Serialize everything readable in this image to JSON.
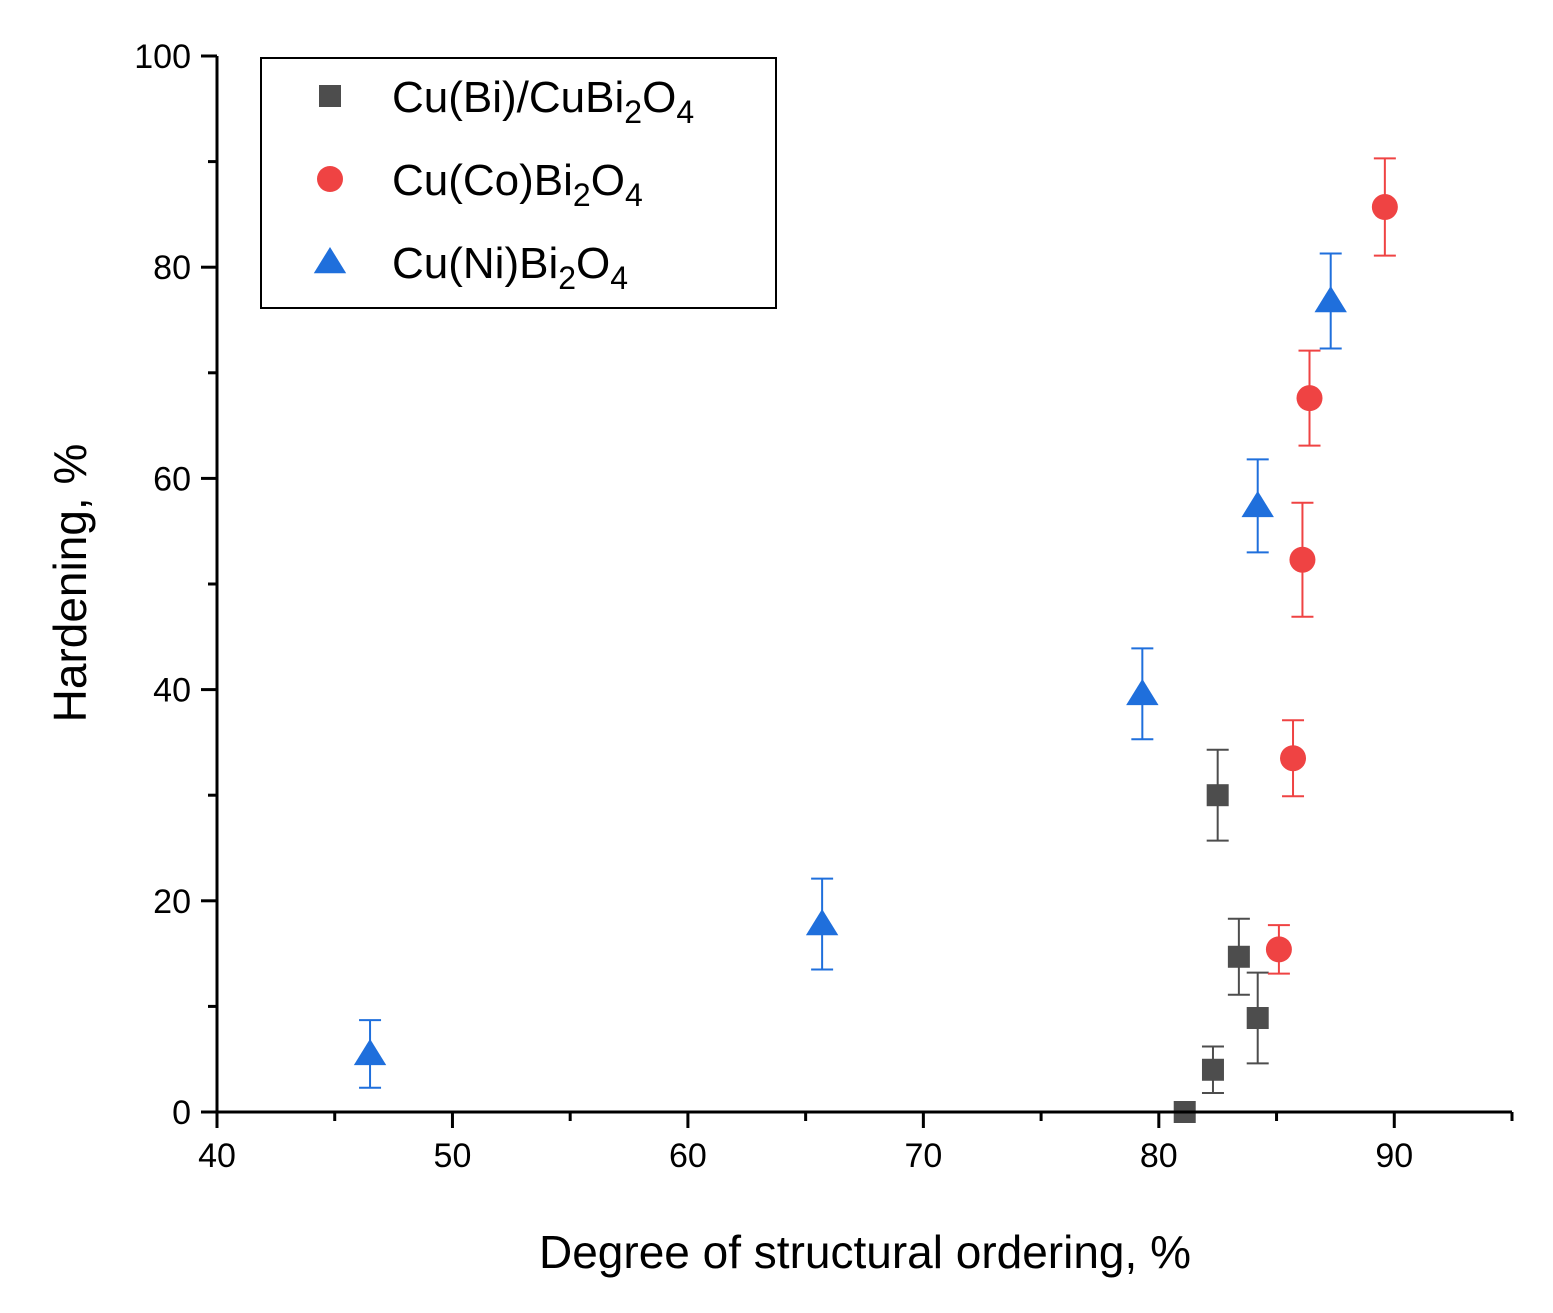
{
  "chart_data": {
    "type": "scatter",
    "title": "",
    "xlabel": "Degree of structural ordering, %",
    "ylabel": "Hardening, %",
    "xlim": [
      40,
      95
    ],
    "ylim": [
      0,
      100
    ],
    "x_major_ticks": [
      40,
      50,
      60,
      70,
      80,
      90
    ],
    "x_minor_ticks": [
      45,
      55,
      65,
      75,
      85,
      95
    ],
    "y_major_ticks": [
      0,
      20,
      40,
      60,
      80,
      100
    ],
    "y_minor_ticks": [
      10,
      30,
      50,
      70,
      90
    ],
    "tick_labels": {
      "x": [
        "40",
        "50",
        "60",
        "70",
        "80",
        "90"
      ],
      "y": [
        "0",
        "20",
        "40",
        "60",
        "80",
        "100"
      ]
    },
    "grid": false,
    "legend_position": "top-left",
    "series": [
      {
        "name": "Cu(Bi)/CuBi2O4",
        "legend_parts": [
          {
            "text": "Cu(Bi)/CuBi",
            "sub": false
          },
          {
            "text": "2",
            "sub": true
          },
          {
            "text": "O",
            "sub": false
          },
          {
            "text": "4",
            "sub": true
          }
        ],
        "marker": "square",
        "color": "#4d4d4d",
        "points": [
          {
            "x": 81.1,
            "y": 0,
            "err": 0
          },
          {
            "x": 82.3,
            "y": 4,
            "err": 2.2
          },
          {
            "x": 82.5,
            "y": 30,
            "err": 4.3
          },
          {
            "x": 83.4,
            "y": 14.7,
            "err": 3.6
          },
          {
            "x": 84.2,
            "y": 8.9,
            "err": 4.3
          }
        ]
      },
      {
        "name": "Cu(Co)Bi2O4",
        "legend_parts": [
          {
            "text": "Cu(Co)Bi",
            "sub": false
          },
          {
            "text": "2",
            "sub": true
          },
          {
            "text": "O",
            "sub": false
          },
          {
            "text": "4",
            "sub": true
          }
        ],
        "marker": "circle",
        "color": "#ef4343",
        "points": [
          {
            "x": 85.1,
            "y": 15.4,
            "err": 2.3
          },
          {
            "x": 85.7,
            "y": 33.5,
            "err": 3.6
          },
          {
            "x": 86.1,
            "y": 52.3,
            "err": 5.4
          },
          {
            "x": 86.4,
            "y": 67.6,
            "err": 4.5
          },
          {
            "x": 89.6,
            "y": 85.7,
            "err": 4.6
          }
        ]
      },
      {
        "name": " Cu(Ni)Bi2O4",
        "legend_parts": [
          {
            "text": " Cu(Ni)Bi",
            "sub": false
          },
          {
            "text": "2",
            "sub": true
          },
          {
            "text": "O",
            "sub": false
          },
          {
            "text": "4",
            "sub": true
          }
        ],
        "marker": "triangle",
        "color": "#1f6fdc",
        "points": [
          {
            "x": 46.5,
            "y": 5.5,
            "err": 3.2
          },
          {
            "x": 65.7,
            "y": 17.8,
            "err": 4.3
          },
          {
            "x": 79.3,
            "y": 39.6,
            "err": 4.3
          },
          {
            "x": 84.2,
            "y": 57.4,
            "err": 4.4
          },
          {
            "x": 87.3,
            "y": 76.8,
            "err": 4.5
          }
        ]
      }
    ]
  }
}
